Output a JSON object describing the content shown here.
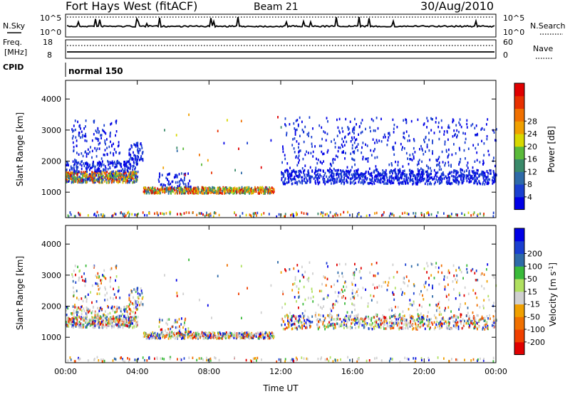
{
  "header": {
    "station": "Fort Hays West (fitACF)",
    "beam": "Beam 21",
    "date": "30/Aug/2010"
  },
  "small_panels": {
    "nsky_label": "N.Sky",
    "nsearch_label": "N.Search",
    "nsky_ticks": [
      "10^5",
      "10^0"
    ],
    "nsearch_ticks": [
      "10^5",
      "10^0"
    ],
    "freq_label_1": "Freq.",
    "freq_label_2": "[MHz]",
    "freq_ticks": [
      "18",
      "8"
    ],
    "nave_label": "Nave",
    "nave_ticks": [
      "60",
      "0"
    ],
    "cpid_label": "CPID",
    "cpid_value": "normal 150"
  },
  "chart_data": [
    {
      "type": "heatmap",
      "panel": "power",
      "ylabel": "Slant Range [km]",
      "xlabel": "",
      "yticks": [
        1000,
        2000,
        3000,
        4000
      ],
      "ylim": [
        180,
        4600
      ],
      "xlim_hours": [
        0,
        24
      ],
      "colorbar": {
        "label": "Power [dB]",
        "ticks": [
          "4",
          "8",
          "12",
          "16",
          "20",
          "24",
          "28"
        ],
        "colors": [
          "#0000e6",
          "#1a3fd0",
          "#2e6aa8",
          "#3a8a6a",
          "#5aba3a",
          "#d8d800",
          "#f0a000",
          "#f07000",
          "#e83000",
          "#e00000"
        ]
      },
      "features": [
        {
          "t0": 0.0,
          "t1": 4.0,
          "r0": 1200,
          "r1": 1900,
          "level": "mixed"
        },
        {
          "t0": 4.3,
          "t1": 11.5,
          "r0": 900,
          "r1": 1200,
          "level": "high"
        },
        {
          "t0": 12.0,
          "t1": 24.0,
          "r0": 1200,
          "r1": 1800,
          "level": "low"
        }
      ]
    },
    {
      "type": "heatmap",
      "panel": "velocity",
      "ylabel": "Slant Range [km]",
      "xlabel": "Time UT",
      "yticks": [
        1000,
        2000,
        3000,
        4000
      ],
      "ylim": [
        180,
        4600
      ],
      "xlim_hours": [
        0,
        24
      ],
      "xticks": [
        "00:00",
        "04:00",
        "08:00",
        "12:00",
        "16:00",
        "20:00",
        "00:00"
      ],
      "colorbar": {
        "label": "Velocity [m s",
        "label_sup": "-1",
        "label_end": "]",
        "ticks": [
          "-200",
          "-100",
          "-50",
          "-15",
          "15",
          "50",
          "100",
          "200"
        ],
        "colors": [
          "#e00000",
          "#f04000",
          "#f07000",
          "#f0a000",
          "#d0d0d0",
          "#b0e060",
          "#3aba3a",
          "#2e6aa8",
          "#1a3fd0",
          "#0000e6"
        ]
      }
    }
  ]
}
